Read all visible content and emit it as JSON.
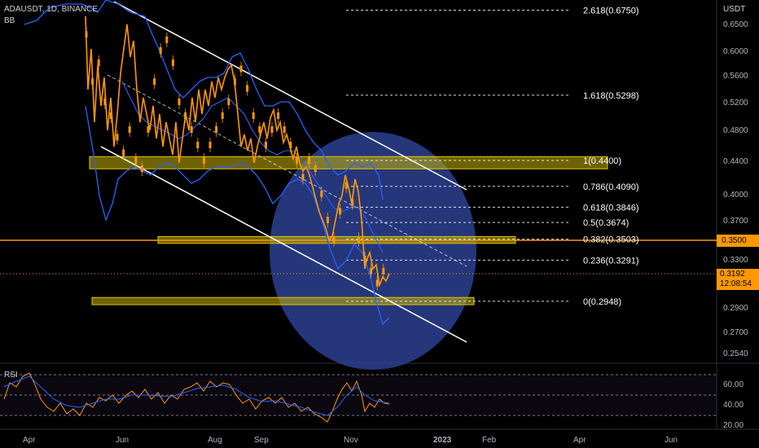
{
  "header": {
    "symbol": "ADAUSDT, 1D, BINANCE",
    "bb_label": "BB",
    "rsi_label": "RSI"
  },
  "price_scale": {
    "currency": "USDT",
    "ticks": [
      "0.6500",
      "0.6000",
      "0.5600",
      "0.5200",
      "0.4800",
      "0.4400",
      "0.4000",
      "0.3700",
      "0.3300",
      "0.2900",
      "0.2700",
      "0.2540"
    ],
    "highlight_level": "0.3500",
    "current_price": "0.3192",
    "countdown": "12:08:54"
  },
  "rsi_scale": {
    "ticks": [
      "60.00",
      "40.00",
      "20.00"
    ]
  },
  "time_axis": {
    "labels": [
      "Apr",
      "Jun",
      "Aug",
      "Sep",
      "Nov",
      "2023",
      "Feb",
      "Apr",
      "Jun"
    ]
  },
  "colors": {
    "candle": "#ff9800",
    "bb": "#2962ff",
    "fib_zone": "#c8b400",
    "circle": "#2b3f8f",
    "channel": "#ffffff"
  },
  "chart_data": {
    "type": "candlestick",
    "title": "ADAUSDT, 1D, BINANCE",
    "indicators": [
      "BB",
      "RSI"
    ],
    "fib_levels": [
      {
        "ratio": "2.618",
        "price": 0.675,
        "label": "2.618(0.6750)"
      },
      {
        "ratio": "1.618",
        "price": 0.5298,
        "label": "1.618(0.5298)"
      },
      {
        "ratio": "1",
        "price": 0.44,
        "label": "1(0.4400)"
      },
      {
        "ratio": "0.786",
        "price": 0.409,
        "label": "0.786(0.4090)"
      },
      {
        "ratio": "0.618",
        "price": 0.3846,
        "label": "0.618(0.3846)"
      },
      {
        "ratio": "0.5",
        "price": 0.3674,
        "label": "0.5(0.3674)"
      },
      {
        "ratio": "0.382",
        "price": 0.3503,
        "label": "0.382(0.3503)"
      },
      {
        "ratio": "0.236",
        "price": 0.3291,
        "label": "0.236(0.3291)"
      },
      {
        "ratio": "0",
        "price": 0.2948,
        "label": "0(0.2948)"
      }
    ],
    "zones": [
      {
        "from": 0.43,
        "to": 0.445
      },
      {
        "from": 0.346,
        "to": 0.353
      },
      {
        "from": 0.292,
        "to": 0.298
      }
    ],
    "horizontal_level": 0.35,
    "price_close_series": [
      0.63,
      0.55,
      0.58,
      0.52,
      0.5,
      0.47,
      0.45,
      0.48,
      0.44,
      0.43,
      0.48,
      0.55,
      0.6,
      0.62,
      0.58,
      0.52,
      0.5,
      0.48,
      0.46,
      0.44,
      0.46,
      0.48,
      0.5,
      0.52,
      0.55,
      0.57,
      0.54,
      0.5,
      0.48,
      0.46,
      0.48,
      0.5,
      0.48,
      0.46,
      0.44,
      0.42,
      0.44,
      0.43,
      0.4,
      0.37,
      0.35,
      0.38,
      0.41,
      0.39,
      0.35,
      0.33,
      0.32,
      0.31,
      0.32
    ],
    "ylim": [
      0.245,
      0.7
    ],
    "rsi_ylim": [
      10,
      75
    ]
  }
}
